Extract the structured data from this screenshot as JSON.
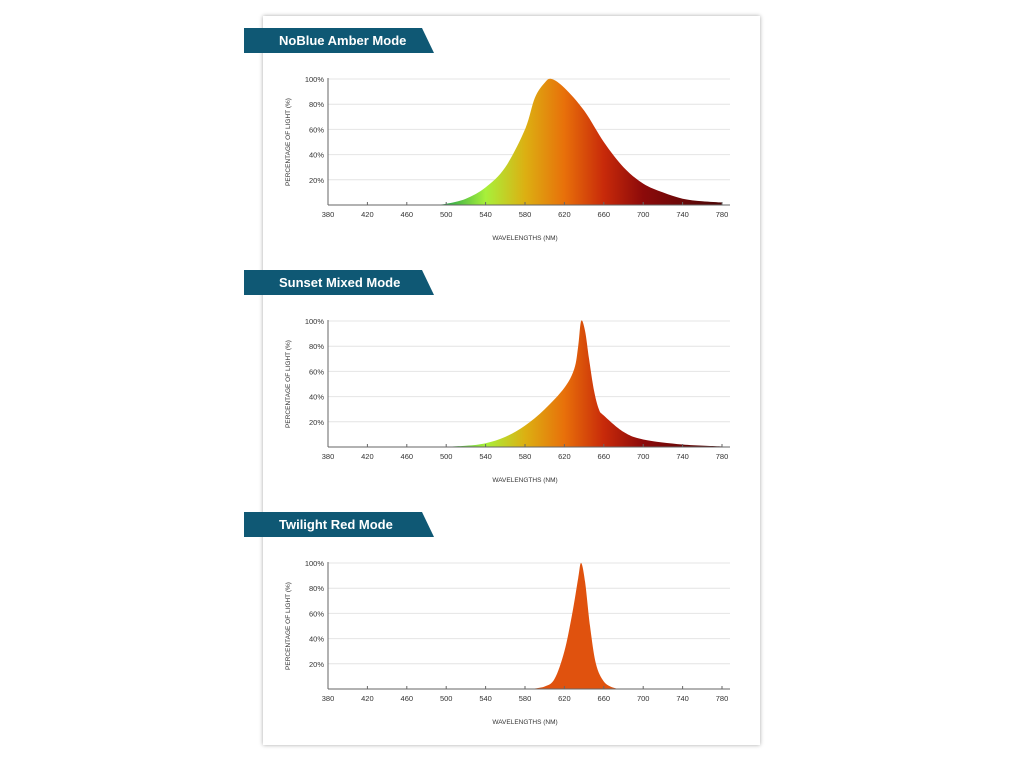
{
  "chart_data": [
    {
      "type": "area",
      "title": "NoBlue Amber Mode",
      "xlabel": "WAVELENGTHS (NM)",
      "ylabel": "PERCENTAGE OF LIGHT (%)",
      "xlim": [
        380,
        780
      ],
      "ylim": [
        0,
        100
      ],
      "xticks": [
        "380",
        "420",
        "460",
        "500",
        "540",
        "580",
        "620",
        "660",
        "700",
        "740",
        "780"
      ],
      "yticks": [
        "20%",
        "40%",
        "60%",
        "80%",
        "100%"
      ],
      "x": [
        488,
        500,
        520,
        540,
        560,
        580,
        590,
        600,
        607,
        620,
        640,
        660,
        680,
        700,
        720,
        740,
        760,
        780
      ],
      "y": [
        0,
        1,
        5,
        14,
        30,
        60,
        85,
        97,
        100,
        93,
        75,
        50,
        30,
        17,
        10,
        5,
        3,
        2
      ]
    },
    {
      "type": "area",
      "title": "Sunset Mixed Mode",
      "xlabel": "WAVELENGTHS (NM)",
      "ylabel": "PERCENTAGE OF LIGHT (%)",
      "xlim": [
        380,
        780
      ],
      "ylim": [
        0,
        100
      ],
      "xticks": [
        "380",
        "420",
        "460",
        "500",
        "540",
        "580",
        "620",
        "660",
        "700",
        "740",
        "780"
      ],
      "yticks": [
        "20%",
        "40%",
        "60%",
        "80%",
        "100%"
      ],
      "x": [
        490,
        520,
        540,
        560,
        580,
        600,
        620,
        630,
        634,
        637,
        641,
        645,
        650,
        655,
        660,
        680,
        700,
        740,
        780
      ],
      "y": [
        0,
        1,
        3,
        8,
        17,
        30,
        47,
        62,
        80,
        100,
        92,
        70,
        45,
        30,
        25,
        12,
        6,
        2,
        0.5
      ]
    },
    {
      "type": "area",
      "title": "Twilight Red Mode",
      "xlabel": "WAVELENGTHS (NM)",
      "ylabel": "PERCENTAGE OF LIGHT (%)",
      "xlim": [
        380,
        780
      ],
      "ylim": [
        0,
        100
      ],
      "xticks": [
        "380",
        "420",
        "460",
        "500",
        "540",
        "580",
        "620",
        "660",
        "700",
        "740",
        "780"
      ],
      "yticks": [
        "20%",
        "40%",
        "60%",
        "80%",
        "100%"
      ],
      "x": [
        585,
        600,
        610,
        620,
        628,
        634,
        637,
        641,
        646,
        652,
        660,
        670,
        680
      ],
      "y": [
        0,
        2,
        8,
        30,
        60,
        88,
        100,
        85,
        50,
        20,
        6,
        1,
        0
      ]
    }
  ],
  "colors": {
    "banner": "#0f5874",
    "twilight_fill": "#e0520e"
  }
}
